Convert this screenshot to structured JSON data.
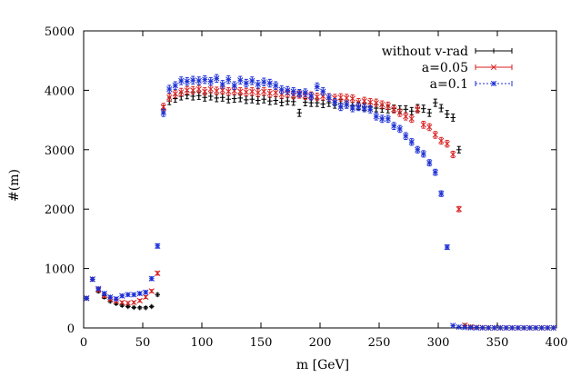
{
  "chart_data": {
    "type": "scatter",
    "title": "",
    "xlabel": "m [GeV]",
    "ylabel": "#(m)",
    "xlim": [
      0,
      400
    ],
    "ylim": [
      0,
      5000
    ],
    "grid": false,
    "legend_position": "top-right",
    "x_ticks": [
      0,
      50,
      100,
      150,
      200,
      250,
      300,
      350,
      400
    ],
    "y_ticks": [
      0,
      1000,
      2000,
      3000,
      4000,
      5000
    ],
    "x_tick_labels": [
      "0",
      "50",
      "100",
      "150",
      "200",
      "250",
      "300",
      "350",
      "400"
    ],
    "y_tick_labels": [
      "0",
      "1000",
      "2000",
      "3000",
      "4000",
      "5000"
    ],
    "x": [
      2.5,
      7.5,
      12.5,
      17.5,
      22.5,
      27.5,
      32.5,
      37.5,
      42.5,
      47.5,
      52.5,
      57.5,
      62.5,
      67.5,
      72.5,
      77.5,
      82.5,
      87.5,
      92.5,
      97.5,
      102.5,
      107.5,
      112.5,
      117.5,
      122.5,
      127.5,
      132.5,
      137.5,
      142.5,
      147.5,
      152.5,
      157.5,
      162.5,
      167.5,
      172.5,
      177.5,
      182.5,
      187.5,
      192.5,
      197.5,
      202.5,
      207.5,
      212.5,
      217.5,
      222.5,
      227.5,
      232.5,
      237.5,
      242.5,
      247.5,
      252.5,
      257.5,
      262.5,
      267.5,
      272.5,
      277.5,
      282.5,
      287.5,
      292.5,
      297.5,
      302.5,
      307.5,
      312.5,
      317.5,
      322.5,
      327.5,
      332.5,
      337.5,
      342.5,
      347.5,
      352.5,
      357.5,
      362.5,
      367.5,
      372.5,
      377.5,
      382.5,
      387.5,
      392.5,
      397.5
    ],
    "series": [
      {
        "name": "without v-rad",
        "color": "#000000",
        "marker": "plus",
        "values": [
          500,
          820,
          620,
          520,
          450,
          410,
          380,
          360,
          345,
          340,
          340,
          360,
          560,
          3680,
          3820,
          3860,
          3900,
          3920,
          3900,
          3910,
          3880,
          3900,
          3870,
          3880,
          3850,
          3860,
          3870,
          3840,
          3850,
          3830,
          3850,
          3820,
          3830,
          3800,
          3820,
          3810,
          3620,
          3800,
          3790,
          3790,
          3770,
          3790,
          3760,
          3780,
          3760,
          3740,
          3740,
          3720,
          3720,
          3700,
          3690,
          3680,
          3690,
          3680,
          3680,
          3650,
          3700,
          3690,
          3620,
          3790,
          3700,
          3600,
          3540,
          3000,
          40,
          15,
          8,
          5,
          3,
          2,
          2,
          2,
          2,
          2,
          2,
          2,
          2,
          2,
          2,
          2
        ]
      },
      {
        "name": "a=0.05",
        "color": "#d81e1e",
        "marker": "x",
        "values": [
          500,
          820,
          640,
          540,
          480,
          450,
          430,
          420,
          430,
          460,
          520,
          620,
          920,
          3720,
          3880,
          3940,
          3970,
          4000,
          4000,
          4020,
          3980,
          4020,
          3990,
          4000,
          3980,
          3990,
          3980,
          3970,
          3980,
          3960,
          3980,
          3950,
          3960,
          3930,
          3950,
          3920,
          3930,
          3910,
          3910,
          3890,
          3900,
          3880,
          3870,
          3880,
          3870,
          3860,
          3800,
          3820,
          3800,
          3790,
          3760,
          3740,
          3680,
          3620,
          3560,
          3520,
          3680,
          3420,
          3380,
          3250,
          3150,
          3100,
          2920,
          2000,
          45,
          20,
          10,
          5,
          3,
          2,
          2,
          2,
          2,
          2,
          2,
          2,
          2,
          2,
          2,
          2
        ]
      },
      {
        "name": "a=0.1",
        "color": "#1c2fd6",
        "marker": "star",
        "values": [
          500,
          820,
          660,
          580,
          520,
          490,
          540,
          560,
          560,
          580,
          600,
          830,
          1380,
          3620,
          4020,
          4080,
          4160,
          4150,
          4170,
          4160,
          4180,
          4150,
          4200,
          4100,
          4180,
          4080,
          4170,
          4120,
          4160,
          4100,
          4140,
          4120,
          4080,
          4010,
          4000,
          3980,
          3950,
          3960,
          3900,
          4060,
          3980,
          3880,
          3800,
          3720,
          3760,
          3700,
          3720,
          3700,
          3680,
          3560,
          3520,
          3520,
          3400,
          3350,
          3230,
          3130,
          3000,
          2930,
          2780,
          2620,
          2260,
          1360,
          40,
          15,
          8,
          5,
          3,
          2,
          2,
          2,
          2,
          2,
          2,
          2,
          2,
          2,
          2,
          2,
          2,
          2
        ]
      }
    ]
  }
}
